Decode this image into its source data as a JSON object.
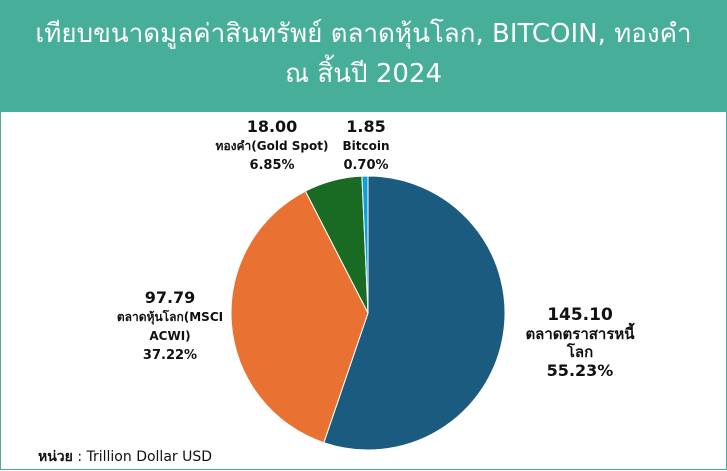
{
  "chart_data": {
    "type": "pie",
    "title": [
      "เทียบขนาดมูลค่าสินทรัพย์ ตลาดหุ้นโลก, BITCOIN, ทองคำ",
      "ณ สิ้นปี 2024"
    ],
    "categories": [
      "ตลาดตราสารหนี้โลก",
      "ตลาดหุ้นโลก(MSCI ACWI)",
      "ทองคำ(Gold Spot)",
      "Bitcoin"
    ],
    "values": [
      145.1,
      97.79,
      18.0,
      1.85
    ],
    "value_labels": [
      "145.10",
      "97.79",
      "18.00",
      "1.85"
    ],
    "percent_labels": [
      "55.23%",
      "37.22%",
      "6.85%",
      "0.70%"
    ],
    "colors": [
      "#1b5b80",
      "#e97132",
      "#196b24",
      "#0f9ed5"
    ],
    "unit_label": "หน่วย",
    "unit": ": Trillion Dollar USD"
  }
}
